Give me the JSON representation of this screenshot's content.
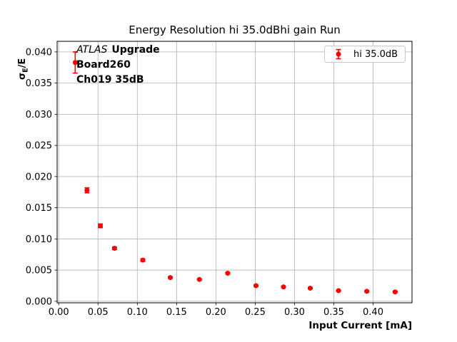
{
  "colors": {
    "marker": "#ff0000",
    "grid": "#b0b0b0",
    "spine": "#000000",
    "legend_border": "#c8c8c8",
    "text": "#000000",
    "background": "#ffffff"
  },
  "chart_data": {
    "type": "scatter",
    "title": "Energy Resolution hi 35.0dBhi gain Run",
    "xlabel": "Input Current [mA]",
    "ylabel": "σE/E",
    "ylabel_parts": {
      "sigma": "σ",
      "sub": "E",
      "rest": "/E"
    },
    "grid": true,
    "legend_position": "upper right",
    "xlim": [
      -0.002,
      0.4495
    ],
    "ylim": [
      -0.00025,
      0.0417
    ],
    "xticks": {
      "values": [
        0.0,
        0.05,
        0.1,
        0.15,
        0.2,
        0.25,
        0.3,
        0.35,
        0.4
      ],
      "labels": [
        "0.00",
        "0.05",
        "0.10",
        "0.15",
        "0.20",
        "0.25",
        "0.30",
        "0.35",
        "0.40"
      ]
    },
    "yticks": {
      "values": [
        0.0,
        0.005,
        0.01,
        0.015,
        0.02,
        0.025,
        0.03,
        0.035,
        0.04
      ],
      "labels": [
        "0.000",
        "0.005",
        "0.010",
        "0.015",
        "0.020",
        "0.025",
        "0.030",
        "0.035",
        "0.040"
      ]
    },
    "series": [
      {
        "name": "hi 35.0dB",
        "color": "#ff0000",
        "marker": "o",
        "x": [
          0.021,
          0.036,
          0.053,
          0.071,
          0.107,
          0.142,
          0.179,
          0.215,
          0.251,
          0.286,
          0.32,
          0.356,
          0.392,
          0.428
        ],
        "y": [
          0.0383,
          0.0178,
          0.0121,
          0.0085,
          0.0066,
          0.0038,
          0.0035,
          0.0045,
          0.0025,
          0.0023,
          0.0021,
          0.0017,
          0.0016,
          0.0015
        ],
        "yerr": [
          0.0017,
          0.0004,
          0.0003,
          0.0002,
          0.0002,
          0.0001,
          0.0001,
          0.0001,
          0.0001,
          0.0001,
          0.0001,
          0.0001,
          0.0001,
          0.0001
        ]
      }
    ]
  },
  "annotation": {
    "experiment": "ATLAS",
    "tag": "Upgrade",
    "board": "Board260",
    "channel": "Ch019 35dB"
  }
}
